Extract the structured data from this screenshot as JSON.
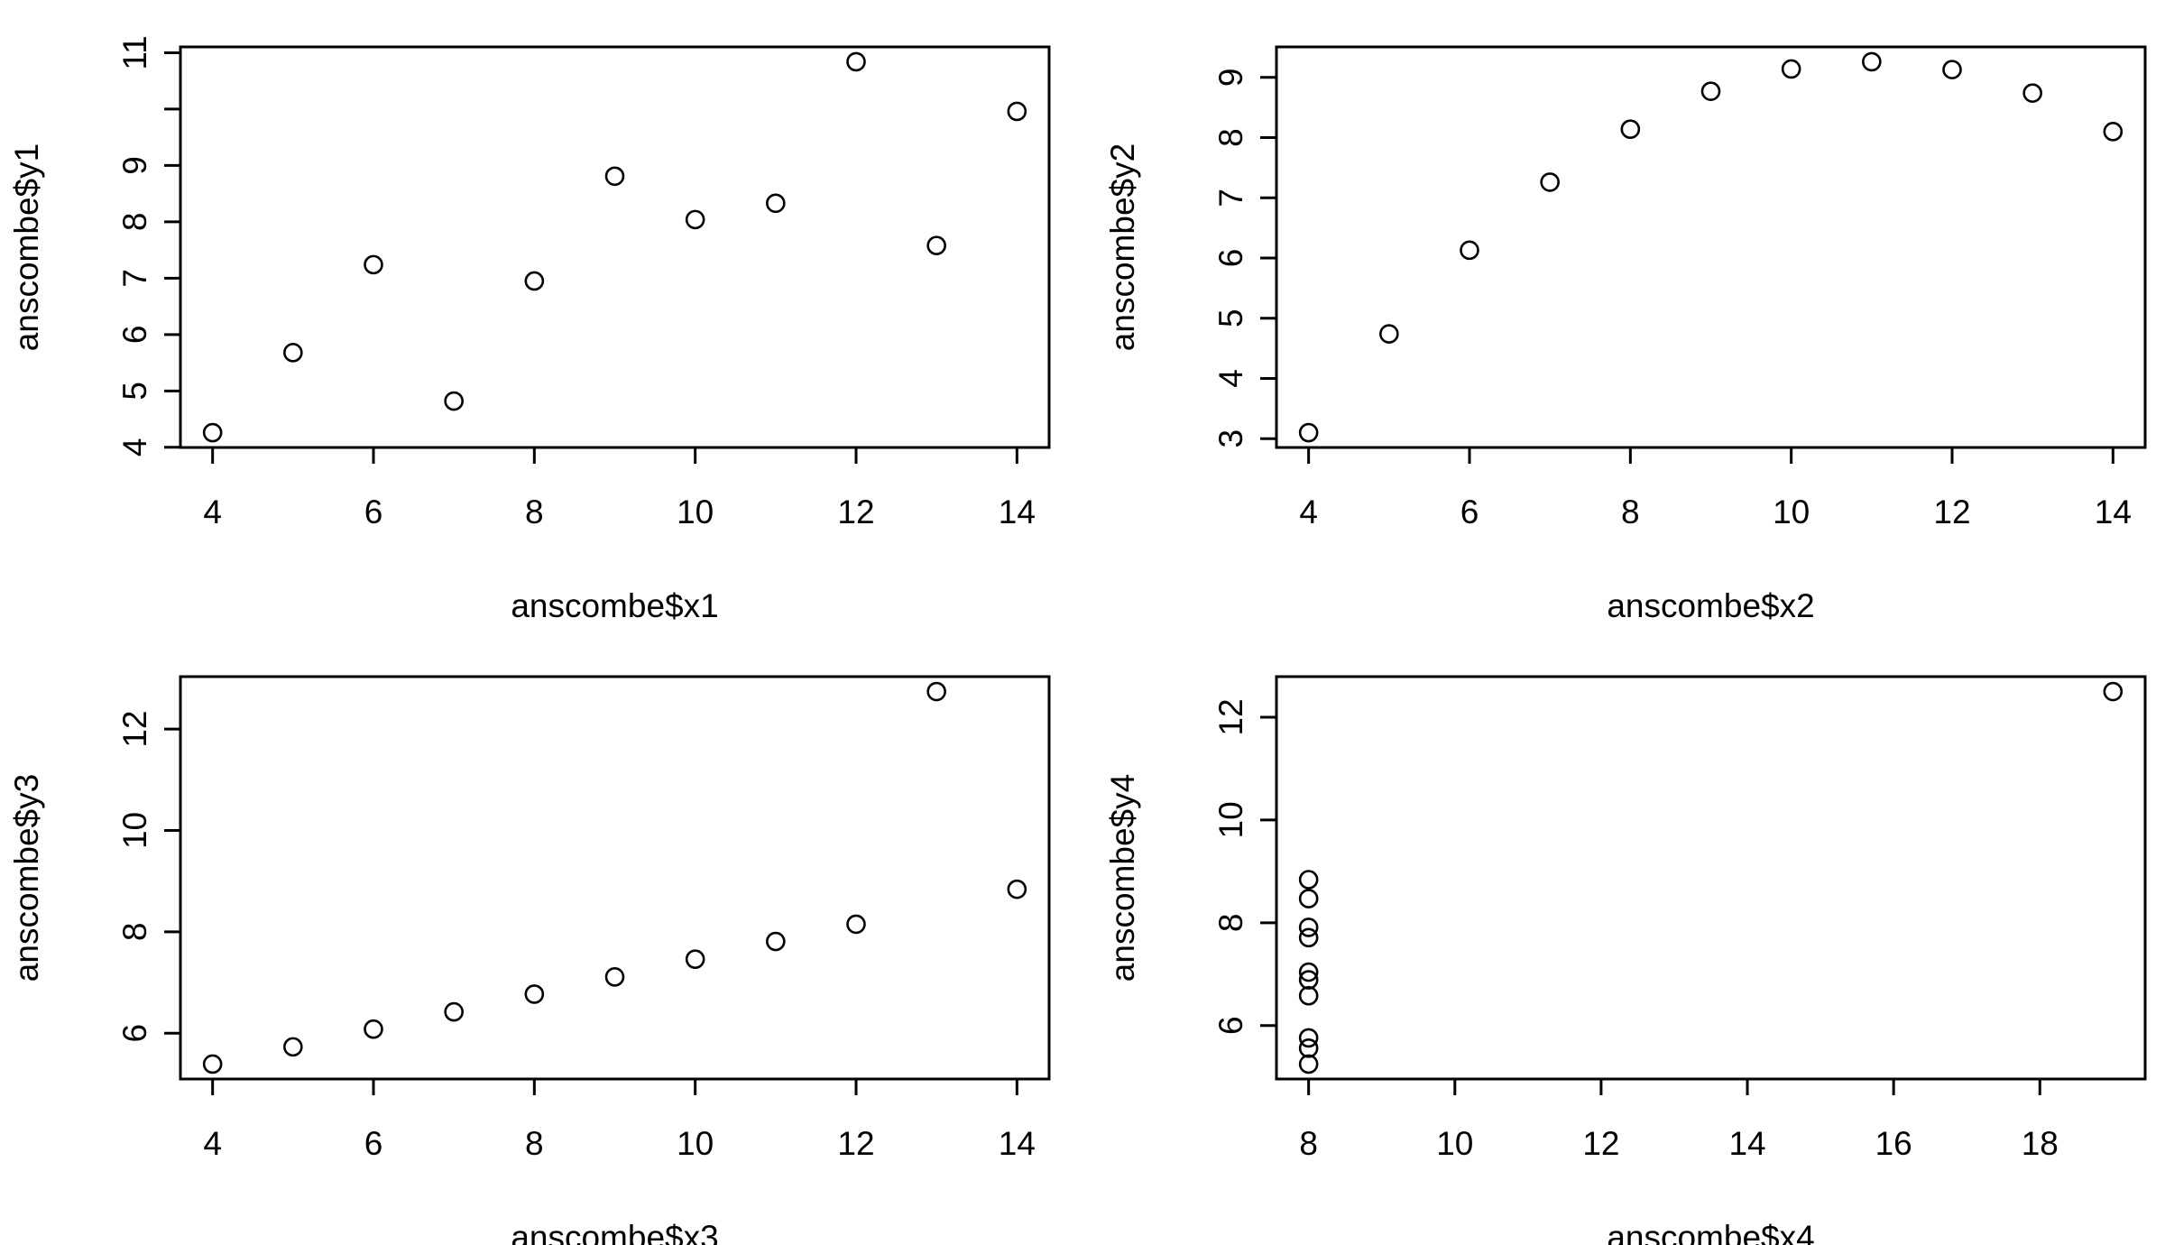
{
  "chart_data": [
    {
      "type": "scatter",
      "xlabel": "anscombe$x1",
      "ylabel": "anscombe$y1",
      "xlim": [
        4,
        14
      ],
      "ylim": [
        4.26,
        10.84
      ],
      "xticks": [
        "4",
        "6",
        "8",
        "10",
        "12",
        "14"
      ],
      "yticks": [
        "4",
        "5",
        "6",
        "7",
        "8",
        "9",
        "",
        "11"
      ],
      "ytick_values": [
        4,
        5,
        6,
        7,
        8,
        9,
        10,
        11
      ],
      "x": [
        10,
        8,
        13,
        9,
        11,
        14,
        6,
        4,
        12,
        7,
        5
      ],
      "y": [
        8.04,
        6.95,
        7.58,
        8.81,
        8.33,
        9.96,
        7.24,
        4.26,
        10.84,
        4.82,
        5.68
      ]
    },
    {
      "type": "scatter",
      "xlabel": "anscombe$x2",
      "ylabel": "anscombe$y2",
      "xlim": [
        4,
        14
      ],
      "ylim": [
        3.1,
        9.26
      ],
      "xticks": [
        "4",
        "6",
        "8",
        "10",
        "12",
        "14"
      ],
      "yticks": [
        "3",
        "4",
        "5",
        "6",
        "7",
        "8",
        "9"
      ],
      "ytick_values": [
        3,
        4,
        5,
        6,
        7,
        8,
        9
      ],
      "x": [
        10,
        8,
        13,
        9,
        11,
        14,
        6,
        4,
        12,
        7,
        5
      ],
      "y": [
        9.14,
        8.14,
        8.74,
        8.77,
        9.26,
        8.1,
        6.13,
        3.1,
        9.13,
        7.26,
        4.74
      ]
    },
    {
      "type": "scatter",
      "xlabel": "anscombe$x3",
      "ylabel": "anscombe$y3",
      "xlim": [
        4,
        14
      ],
      "ylim": [
        5.39,
        12.74
      ],
      "xticks": [
        "4",
        "6",
        "8",
        "10",
        "12",
        "14"
      ],
      "yticks": [
        "6",
        "8",
        "10",
        "12"
      ],
      "ytick_values": [
        6,
        8,
        10,
        12
      ],
      "x": [
        10,
        8,
        13,
        9,
        11,
        14,
        6,
        4,
        12,
        7,
        5
      ],
      "y": [
        7.46,
        6.77,
        12.74,
        7.11,
        7.81,
        8.84,
        6.08,
        5.39,
        8.15,
        6.42,
        5.73
      ]
    },
    {
      "type": "scatter",
      "xlabel": "anscombe$x4",
      "ylabel": "anscombe$y4",
      "xlim": [
        8,
        19
      ],
      "ylim": [
        5.25,
        12.5
      ],
      "xticks": [
        "8",
        "10",
        "12",
        "14",
        "16",
        "18"
      ],
      "yticks": [
        "6",
        "8",
        "10",
        "12"
      ],
      "ytick_values": [
        6,
        8,
        10,
        12
      ],
      "x": [
        8,
        8,
        8,
        8,
        8,
        8,
        8,
        19,
        8,
        8,
        8
      ],
      "y": [
        6.58,
        5.76,
        7.71,
        8.84,
        8.47,
        7.04,
        5.25,
        12.5,
        5.56,
        7.91,
        6.89
      ]
    }
  ]
}
